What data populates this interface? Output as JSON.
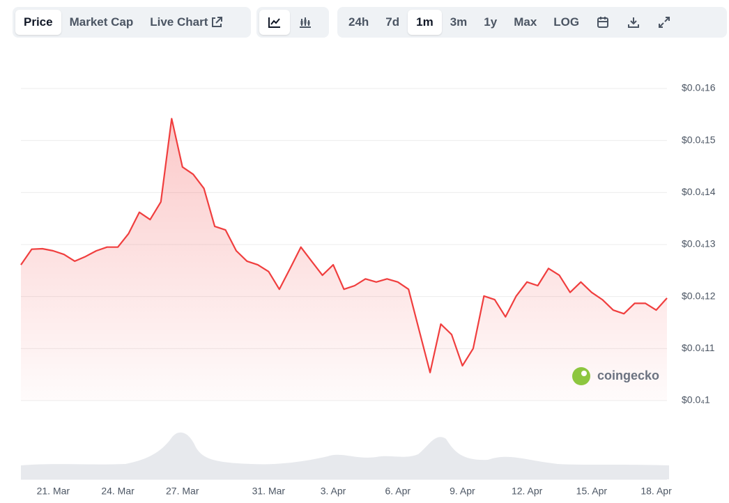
{
  "toolbar": {
    "tabs": [
      {
        "label": "Price",
        "selected": true
      },
      {
        "label": "Market Cap",
        "selected": false
      },
      {
        "label": "Live Chart",
        "selected": false
      }
    ],
    "ranges": [
      {
        "label": "24h",
        "selected": false
      },
      {
        "label": "7d",
        "selected": false
      },
      {
        "label": "1m",
        "selected": true
      },
      {
        "label": "3m",
        "selected": false
      },
      {
        "label": "1y",
        "selected": false
      },
      {
        "label": "Max",
        "selected": false
      },
      {
        "label": "LOG",
        "selected": false
      }
    ]
  },
  "watermark": "coingecko",
  "chart_data": {
    "type": "area",
    "color": "#f03e3e",
    "categories": [
      null,
      null,
      null,
      "21. Mar",
      null,
      null,
      null,
      null,
      null,
      "24. Mar",
      null,
      null,
      null,
      null,
      null,
      "27. Mar",
      null,
      null,
      null,
      null,
      null,
      null,
      null,
      "31. Mar",
      null,
      null,
      null,
      null,
      null,
      "3. Apr",
      null,
      null,
      null,
      null,
      null,
      "6. Apr",
      null,
      null,
      null,
      null,
      null,
      "9. Apr",
      null,
      null,
      null,
      null,
      null,
      "12. Apr",
      null,
      null,
      null,
      null,
      null,
      "15. Apr",
      null,
      null,
      null,
      null,
      null,
      "18. Apr",
      null
    ],
    "values": [
      1.261e-05,
      1.291e-05,
      1.292e-05,
      1.288e-05,
      1.281e-05,
      1.268e-05,
      1.277e-05,
      1.288e-05,
      1.295e-05,
      1.295e-05,
      1.321e-05,
      1.362e-05,
      1.348e-05,
      1.382e-05,
      1.542e-05,
      1.449e-05,
      1.435e-05,
      1.408e-05,
      1.335e-05,
      1.328e-05,
      1.288e-05,
      1.268e-05,
      1.261e-05,
      1.248e-05,
      1.214e-05,
      1.254e-05,
      1.295e-05,
      1.268e-05,
      1.241e-05,
      1.261e-05,
      1.214e-05,
      1.221e-05,
      1.234e-05,
      1.228e-05,
      1.234e-05,
      1.228e-05,
      1.214e-05,
      1.134e-05,
      1.054e-05,
      1.147e-05,
      1.127e-05,
      1.067e-05,
      1.1e-05,
      1.201e-05,
      1.194e-05,
      1.161e-05,
      1.201e-05,
      1.228e-05,
      1.221e-05,
      1.254e-05,
      1.241e-05,
      1.208e-05,
      1.228e-05,
      1.208e-05,
      1.194e-05,
      1.174e-05,
      1.167e-05,
      1.187e-05,
      1.187e-05,
      1.174e-05,
      1.197e-05
    ],
    "ylim": [
      1e-05,
      1.6e-05
    ],
    "yticks": [
      {
        "value": 1e-05,
        "label": "$0.0₄1"
      },
      {
        "value": 1.1e-05,
        "label": "$0.0₄11"
      },
      {
        "value": 1.2e-05,
        "label": "$0.0₄12"
      },
      {
        "value": 1.3e-05,
        "label": "$0.0₄13"
      },
      {
        "value": 1.4e-05,
        "label": "$0.0₄14"
      },
      {
        "value": 1.5e-05,
        "label": "$0.0₄15"
      },
      {
        "value": 1.6e-05,
        "label": "$0.0₄16"
      }
    ],
    "grid": true
  }
}
